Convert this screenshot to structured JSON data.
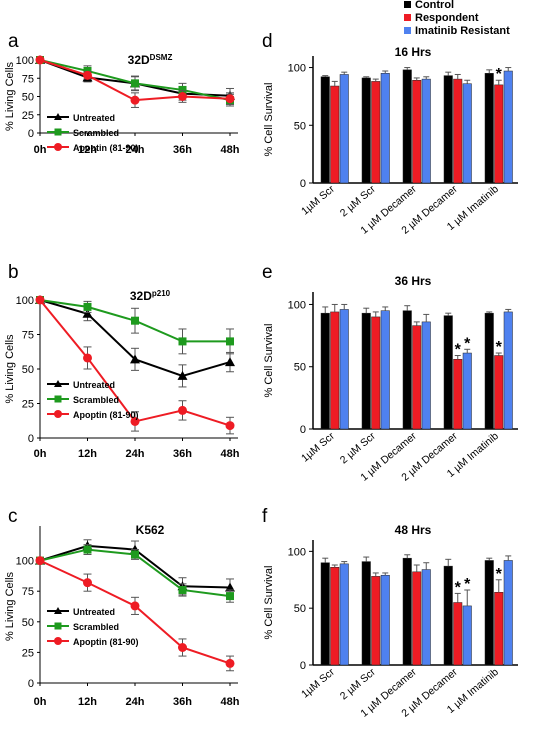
{
  "panel_letters": [
    "a",
    "b",
    "c",
    "d",
    "e",
    "f"
  ],
  "legend_top": [
    {
      "label": "Control",
      "color": "#000000"
    },
    {
      "label": "Respondent",
      "color": "#ee1c24"
    },
    {
      "label": "Imatinib Resistant",
      "color": "#4f81ef"
    }
  ],
  "colors": {
    "untreated": "#000000",
    "scrambled": "#1e9a1e",
    "apoptin": "#ee1c24",
    "control": "#000000",
    "respondent": "#ee1c24",
    "resistant": "#4f81ef"
  },
  "chart_data": [
    {
      "id": "a",
      "type": "line",
      "title": "32D",
      "title_sup": "DSMZ",
      "xlabel": "",
      "ylabel": "% Living Cells",
      "categories": [
        "0h",
        "12h",
        "24h",
        "36h",
        "48h"
      ],
      "ylim": [
        0,
        100
      ],
      "yticks": [
        0,
        25,
        50,
        75,
        100
      ],
      "legend_position": "bottom-left",
      "series": [
        {
          "name": "Untreated",
          "marker": "triangle",
          "values": [
            100,
            76,
            68,
            54,
            51
          ],
          "errors": [
            0,
            6,
            10,
            9,
            10
          ]
        },
        {
          "name": "Scrambled",
          "marker": "square",
          "values": [
            100,
            85,
            68,
            59,
            45
          ],
          "errors": [
            0,
            7,
            9,
            9,
            8
          ]
        },
        {
          "name": "Apoptin (81-90)",
          "marker": "circle",
          "values": [
            100,
            79,
            45,
            50,
            47
          ],
          "errors": [
            0,
            5,
            10,
            8,
            8
          ]
        }
      ]
    },
    {
      "id": "b",
      "type": "line",
      "title": "32D",
      "title_sup": "p210",
      "xlabel": "",
      "ylabel": "% Living Cells",
      "categories": [
        "0h",
        "12h",
        "24h",
        "36h",
        "48h"
      ],
      "ylim": [
        0,
        100
      ],
      "yticks": [
        0,
        25,
        50,
        75,
        100
      ],
      "legend_position": "bottom-left",
      "series": [
        {
          "name": "Untreated",
          "marker": "triangle",
          "values": [
            100,
            90,
            57,
            45,
            55
          ],
          "errors": [
            0,
            5,
            8,
            8,
            7
          ]
        },
        {
          "name": "Scrambled",
          "marker": "square",
          "values": [
            100,
            95,
            85,
            70,
            70
          ],
          "errors": [
            0,
            4,
            9,
            9,
            9
          ]
        },
        {
          "name": "Apoptin (81-90)",
          "marker": "circle",
          "values": [
            100,
            58,
            12,
            20,
            9
          ],
          "errors": [
            0,
            8,
            7,
            7,
            6
          ]
        }
      ]
    },
    {
      "id": "c",
      "type": "line",
      "title": "K562",
      "title_sup": "",
      "xlabel": "",
      "ylabel": "% Living Cells",
      "categories": [
        "0h",
        "12h",
        "24h",
        "36h",
        "48h"
      ],
      "ylim": [
        0,
        125
      ],
      "yticks": [
        0,
        25,
        50,
        75,
        100
      ],
      "legend_position": "bottom-left",
      "series": [
        {
          "name": "Untreated",
          "marker": "triangle",
          "values": [
            100,
            112,
            109,
            79,
            78
          ],
          "errors": [
            0,
            5,
            7,
            7,
            7
          ]
        },
        {
          "name": "Scrambled",
          "marker": "square",
          "values": [
            100,
            109,
            105,
            76,
            71
          ],
          "errors": [
            0,
            4,
            4,
            5,
            5
          ]
        },
        {
          "name": "Apoptin (81-90)",
          "marker": "circle",
          "values": [
            100,
            82,
            63,
            29,
            16
          ],
          "errors": [
            0,
            7,
            7,
            7,
            6
          ]
        }
      ]
    },
    {
      "id": "d",
      "type": "bar",
      "title": "16 Hrs",
      "xlabel": "",
      "ylabel": "% Cell Survival",
      "categories": [
        "1µM Scr",
        "2 µM Scr",
        "1 µM Decamer",
        "2 µM Decamer",
        "1 µM Imatinib"
      ],
      "ylim": [
        0,
        110
      ],
      "yticks": [
        0,
        50,
        100
      ],
      "series": [
        {
          "name": "Control",
          "values": [
            92,
            91,
            98,
            93,
            95
          ],
          "errors": [
            1,
            1,
            2,
            3,
            3
          ]
        },
        {
          "name": "Respondent",
          "values": [
            84,
            88,
            89,
            90,
            85
          ],
          "errors": [
            4,
            2,
            2,
            4,
            4
          ]
        },
        {
          "name": "Imatinib Resistant",
          "values": [
            94,
            95,
            90,
            86,
            97
          ],
          "errors": [
            2,
            2,
            2,
            3,
            3
          ]
        }
      ],
      "annotations": [
        {
          "category": 4,
          "series": 1,
          "text": "*"
        }
      ]
    },
    {
      "id": "e",
      "type": "bar",
      "title": "36 Hrs",
      "xlabel": "",
      "ylabel": "% Cell Survival",
      "categories": [
        "1µM Scr",
        "2 µM Scr",
        "1 µM Decamer",
        "2 µM Decamer",
        "1 µM Imatinib"
      ],
      "ylim": [
        0,
        110
      ],
      "yticks": [
        0,
        50,
        100
      ],
      "series": [
        {
          "name": "Control",
          "values": [
            93,
            93,
            95,
            91,
            93
          ],
          "errors": [
            5,
            4,
            4,
            2,
            1
          ]
        },
        {
          "name": "Respondent",
          "values": [
            94,
            90,
            83,
            56,
            59
          ],
          "errors": [
            6,
            4,
            3,
            3,
            2
          ]
        },
        {
          "name": "Imatinib Resistant",
          "values": [
            96,
            95,
            86,
            61,
            94
          ],
          "errors": [
            4,
            3,
            6,
            3,
            2
          ]
        }
      ],
      "annotations": [
        {
          "category": 3,
          "series": 1,
          "text": "*"
        },
        {
          "category": 3,
          "series": 2,
          "text": "*"
        },
        {
          "category": 4,
          "series": 1,
          "text": "*"
        }
      ]
    },
    {
      "id": "f",
      "type": "bar",
      "title": "48 Hrs",
      "xlabel": "",
      "ylabel": "% Cell Survival",
      "categories": [
        "1µM Scr",
        "2 µM Scr",
        "1 µM Decamer",
        "2 µM Decamer",
        "1 µM Imatinib"
      ],
      "ylim": [
        0,
        110
      ],
      "yticks": [
        0,
        50,
        100
      ],
      "series": [
        {
          "name": "Control",
          "values": [
            90,
            91,
            94,
            87,
            92
          ],
          "errors": [
            4,
            4,
            3,
            6,
            2
          ]
        },
        {
          "name": "Respondent",
          "values": [
            86,
            78,
            82,
            55,
            64
          ],
          "errors": [
            2,
            3,
            6,
            8,
            11
          ]
        },
        {
          "name": "Imatinib Resistant",
          "values": [
            89,
            79,
            84,
            52,
            92
          ],
          "errors": [
            2,
            2,
            6,
            14,
            4
          ]
        }
      ],
      "annotations": [
        {
          "category": 3,
          "series": 1,
          "text": "*"
        },
        {
          "category": 3,
          "series": 2,
          "text": "*"
        },
        {
          "category": 4,
          "series": 1,
          "text": "*"
        }
      ]
    }
  ]
}
